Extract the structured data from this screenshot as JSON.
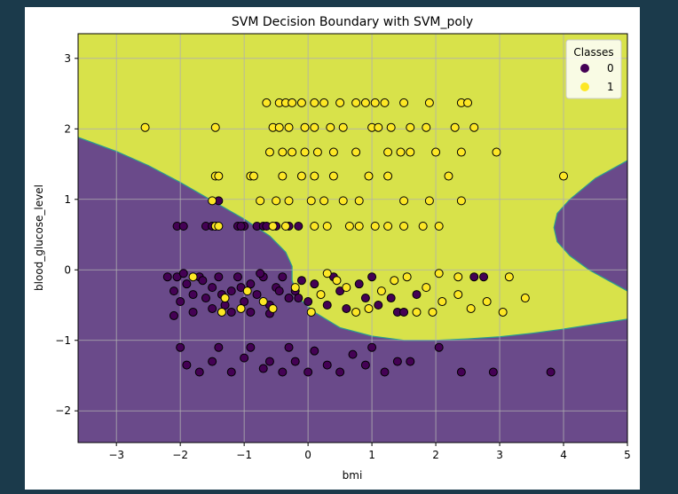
{
  "chart_data": {
    "type": "scatter",
    "title": "SVM Decision Boundary with SVM_poly",
    "xlabel": "bmi",
    "ylabel": "blood_glucose_level",
    "xlim": [
      -3.6,
      5.0
    ],
    "ylim": [
      -2.45,
      3.35
    ],
    "xticks": [
      -3,
      -2,
      -1,
      0,
      1,
      2,
      3,
      4,
      5
    ],
    "yticks": [
      -2,
      -1,
      0,
      1,
      2,
      3
    ],
    "grid": true,
    "background_region": "decision boundary regions for class 0 (purple) and class 1 (yellow)",
    "region_colors": {
      "class_0": "#6a4a8a",
      "class_1": "#d8e24a"
    },
    "colors": {
      "class_0": "#440154",
      "class_1": "#fde725"
    },
    "legend": {
      "title": "Classes",
      "entries": [
        "0",
        "1"
      ],
      "placement": "top-right"
    },
    "series": [
      {
        "name": "0",
        "points": [
          [
            -2.2,
            -0.1
          ],
          [
            -2.1,
            -0.3
          ],
          [
            -2.0,
            -0.45
          ],
          [
            -1.9,
            -0.2
          ],
          [
            -1.8,
            -0.35
          ],
          [
            -1.7,
            -0.1
          ],
          [
            -1.6,
            -0.4
          ],
          [
            -1.5,
            -0.25
          ],
          [
            -1.4,
            -0.1
          ],
          [
            -1.3,
            -0.5
          ],
          [
            -1.2,
            -0.3
          ],
          [
            -1.1,
            -0.1
          ],
          [
            -1.0,
            -0.45
          ],
          [
            -0.9,
            -0.2
          ],
          [
            -0.8,
            -0.35
          ],
          [
            -0.7,
            -0.1
          ],
          [
            -0.6,
            -0.5
          ],
          [
            -0.5,
            -0.25
          ],
          [
            -0.4,
            -0.1
          ],
          [
            -0.3,
            -0.4
          ],
          [
            -0.2,
            -0.3
          ],
          [
            -0.1,
            -0.15
          ],
          [
            0.0,
            -0.45
          ],
          [
            0.1,
            -0.2
          ],
          [
            -2.1,
            -0.65
          ],
          [
            -1.8,
            -0.6
          ],
          [
            -1.5,
            -0.55
          ],
          [
            -1.2,
            -0.6
          ],
          [
            -0.9,
            -0.6
          ],
          [
            -0.6,
            -0.62
          ],
          [
            -2.05,
            -0.1
          ],
          [
            -1.95,
            -0.05
          ],
          [
            -1.65,
            -0.15
          ],
          [
            -1.35,
            -0.35
          ],
          [
            -1.05,
            -0.25
          ],
          [
            -0.75,
            -0.05
          ],
          [
            -0.45,
            -0.3
          ],
          [
            -0.15,
            -0.4
          ],
          [
            -2.0,
            -1.1
          ],
          [
            -1.9,
            -1.35
          ],
          [
            -1.7,
            -1.45
          ],
          [
            -1.5,
            -1.3
          ],
          [
            -1.4,
            -1.1
          ],
          [
            -1.2,
            -1.45
          ],
          [
            -1.0,
            -1.25
          ],
          [
            -0.9,
            -1.1
          ],
          [
            -0.7,
            -1.4
          ],
          [
            -0.6,
            -1.3
          ],
          [
            -0.4,
            -1.45
          ],
          [
            -0.3,
            -1.1
          ],
          [
            -0.2,
            -1.3
          ],
          [
            0.0,
            -1.45
          ],
          [
            0.1,
            -1.15
          ],
          [
            0.3,
            -1.35
          ],
          [
            0.5,
            -1.45
          ],
          [
            0.7,
            -1.2
          ],
          [
            0.9,
            -1.35
          ],
          [
            1.0,
            -1.1
          ],
          [
            1.2,
            -1.45
          ],
          [
            1.4,
            -1.3
          ],
          [
            1.6,
            -1.3
          ],
          [
            2.4,
            -1.45
          ],
          [
            2.9,
            -1.45
          ],
          [
            3.8,
            -1.45
          ],
          [
            2.05,
            -1.1
          ],
          [
            -2.05,
            0.62
          ],
          [
            -1.95,
            0.62
          ],
          [
            -1.6,
            0.62
          ],
          [
            -1.5,
            0.62
          ],
          [
            -1.1,
            0.62
          ],
          [
            -1.0,
            0.62
          ],
          [
            -0.8,
            0.62
          ],
          [
            -0.7,
            0.62
          ],
          [
            -0.5,
            0.62
          ],
          [
            -0.3,
            0.62
          ],
          [
            -0.15,
            0.62
          ],
          [
            -1.45,
            0.62
          ],
          [
            -1.05,
            0.62
          ],
          [
            -0.65,
            0.62
          ],
          [
            0.3,
            -0.5
          ],
          [
            0.5,
            -0.3
          ],
          [
            0.8,
            -0.2
          ],
          [
            1.1,
            -0.5
          ],
          [
            1.4,
            -0.6
          ],
          [
            1.7,
            -0.35
          ],
          [
            2.6,
            -0.1
          ],
          [
            2.75,
            -0.1
          ],
          [
            1.5,
            -0.6
          ],
          [
            0.9,
            -0.4
          ],
          [
            0.6,
            -0.55
          ],
          [
            1.3,
            -0.4
          ],
          [
            1.0,
            -0.1
          ],
          [
            0.4,
            -0.1
          ],
          [
            -1.4,
            0.98
          ]
        ]
      },
      {
        "name": "1",
        "points": [
          [
            -2.55,
            2.02
          ],
          [
            -1.45,
            2.02
          ],
          [
            -1.45,
            1.33
          ],
          [
            -1.4,
            1.33
          ],
          [
            -1.5,
            0.98
          ],
          [
            -1.45,
            0.62
          ],
          [
            -1.4,
            0.62
          ],
          [
            -0.9,
            1.33
          ],
          [
            -0.6,
            1.67
          ],
          [
            -0.55,
            2.02
          ],
          [
            -0.65,
            2.37
          ],
          [
            -0.45,
            2.37
          ],
          [
            -0.35,
            2.37
          ],
          [
            -0.25,
            2.37
          ],
          [
            -0.1,
            2.37
          ],
          [
            0.1,
            2.37
          ],
          [
            0.25,
            2.37
          ],
          [
            0.5,
            2.37
          ],
          [
            0.75,
            2.37
          ],
          [
            0.9,
            2.37
          ],
          [
            1.05,
            2.37
          ],
          [
            1.2,
            2.37
          ],
          [
            1.5,
            2.37
          ],
          [
            1.9,
            2.37
          ],
          [
            2.4,
            2.37
          ],
          [
            2.5,
            2.37
          ],
          [
            -0.45,
            2.02
          ],
          [
            -0.3,
            2.02
          ],
          [
            -0.05,
            2.02
          ],
          [
            0.1,
            2.02
          ],
          [
            0.35,
            2.02
          ],
          [
            0.55,
            2.02
          ],
          [
            1.0,
            2.02
          ],
          [
            1.1,
            2.02
          ],
          [
            1.3,
            2.02
          ],
          [
            1.6,
            2.02
          ],
          [
            1.85,
            2.02
          ],
          [
            2.3,
            2.02
          ],
          [
            2.6,
            2.02
          ],
          [
            -0.4,
            1.67
          ],
          [
            -0.25,
            1.67
          ],
          [
            -0.05,
            1.67
          ],
          [
            0.15,
            1.67
          ],
          [
            0.4,
            1.67
          ],
          [
            0.75,
            1.67
          ],
          [
            1.25,
            1.67
          ],
          [
            1.45,
            1.67
          ],
          [
            1.6,
            1.67
          ],
          [
            2.0,
            1.67
          ],
          [
            2.4,
            1.67
          ],
          [
            2.95,
            1.67
          ],
          [
            -0.85,
            1.33
          ],
          [
            -0.4,
            1.33
          ],
          [
            -0.1,
            1.33
          ],
          [
            0.1,
            1.33
          ],
          [
            0.4,
            1.33
          ],
          [
            0.95,
            1.33
          ],
          [
            1.25,
            1.33
          ],
          [
            2.2,
            1.33
          ],
          [
            4.0,
            1.33
          ],
          [
            -0.75,
            0.98
          ],
          [
            -0.5,
            0.98
          ],
          [
            -0.3,
            0.98
          ],
          [
            0.05,
            0.98
          ],
          [
            0.25,
            0.98
          ],
          [
            0.55,
            0.98
          ],
          [
            0.8,
            0.98
          ],
          [
            1.5,
            0.98
          ],
          [
            1.9,
            0.98
          ],
          [
            2.4,
            0.98
          ],
          [
            -0.55,
            0.62
          ],
          [
            -0.35,
            0.62
          ],
          [
            0.1,
            0.62
          ],
          [
            0.3,
            0.62
          ],
          [
            0.65,
            0.62
          ],
          [
            0.8,
            0.62
          ],
          [
            1.05,
            0.62
          ],
          [
            1.25,
            0.62
          ],
          [
            1.5,
            0.62
          ],
          [
            1.8,
            0.62
          ],
          [
            2.05,
            0.62
          ],
          [
            -1.8,
            -0.1
          ],
          [
            -1.3,
            -0.4
          ],
          [
            -0.95,
            -0.3
          ],
          [
            -0.55,
            -0.55
          ],
          [
            -0.2,
            -0.25
          ],
          [
            0.2,
            -0.35
          ],
          [
            0.45,
            -0.15
          ],
          [
            0.75,
            -0.6
          ],
          [
            1.15,
            -0.3
          ],
          [
            1.55,
            -0.1
          ],
          [
            1.85,
            -0.25
          ],
          [
            2.1,
            -0.45
          ],
          [
            2.35,
            -0.35
          ],
          [
            2.55,
            -0.55
          ],
          [
            2.8,
            -0.45
          ],
          [
            3.05,
            -0.6
          ],
          [
            3.4,
            -0.4
          ],
          [
            3.15,
            -0.1
          ],
          [
            2.35,
            -0.1
          ],
          [
            2.05,
            -0.05
          ],
          [
            0.95,
            -0.55
          ],
          [
            0.6,
            -0.25
          ],
          [
            0.3,
            -0.05
          ],
          [
            1.35,
            -0.15
          ],
          [
            1.7,
            -0.6
          ],
          [
            -1.35,
            -0.6
          ],
          [
            -1.05,
            -0.55
          ],
          [
            -0.7,
            -0.45
          ],
          [
            0.05,
            -0.6
          ],
          [
            1.95,
            -0.6
          ]
        ]
      }
    ]
  }
}
